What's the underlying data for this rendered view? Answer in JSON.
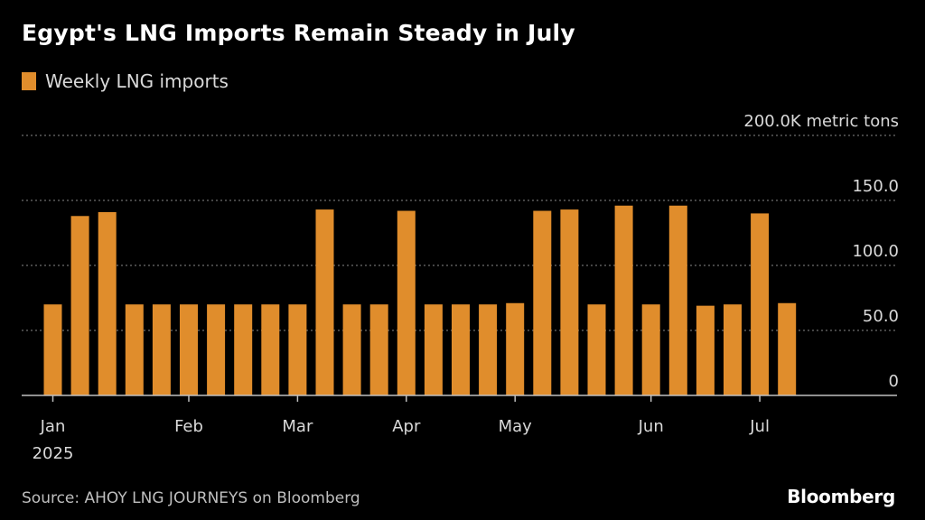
{
  "title": "Egypt's LNG Imports Remain Steady in July",
  "legend": {
    "label": "Weekly LNG imports",
    "color": "#e08d2c"
  },
  "source": "Source: AHOY LNG JOURNEYS on Bloomberg",
  "brand": "Bloomberg",
  "chart_data": {
    "type": "bar",
    "title": "Egypt's LNG Imports Remain Steady in July",
    "series": [
      {
        "name": "Weekly LNG imports",
        "color": "#e08d2c",
        "values": [
          70,
          138,
          141,
          70,
          70,
          70,
          70,
          70,
          70,
          70,
          143,
          70,
          70,
          142,
          70,
          70,
          70,
          71,
          142,
          143,
          70,
          146,
          70,
          146,
          69,
          70,
          140,
          71
        ]
      }
    ],
    "ylim": [
      0,
      200
    ],
    "y_ticks": [
      {
        "value": 200,
        "label": "200.0K metric tons"
      },
      {
        "value": 150,
        "label": "150.0"
      },
      {
        "value": 100,
        "label": "100.0"
      },
      {
        "value": 50,
        "label": "50.0"
      },
      {
        "value": 0,
        "label": "0"
      }
    ],
    "x_ticks": [
      {
        "index": 0,
        "label": "Jan",
        "sublabel": "2025"
      },
      {
        "index": 5,
        "label": "Feb",
        "sublabel": ""
      },
      {
        "index": 9,
        "label": "Mar",
        "sublabel": ""
      },
      {
        "index": 13,
        "label": "Apr",
        "sublabel": ""
      },
      {
        "index": 17,
        "label": "May",
        "sublabel": ""
      },
      {
        "index": 22,
        "label": "Jun",
        "sublabel": ""
      },
      {
        "index": 26,
        "label": "Jul",
        "sublabel": ""
      }
    ],
    "grid": true
  }
}
